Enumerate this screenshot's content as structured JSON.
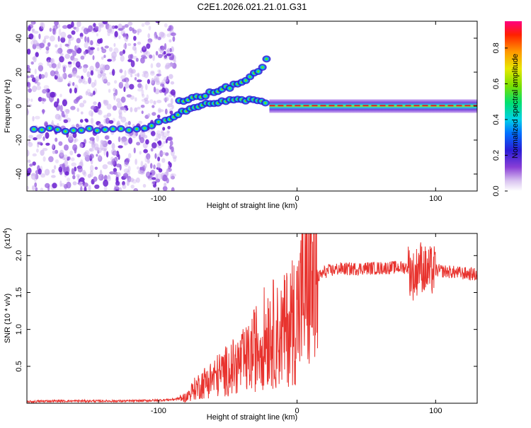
{
  "title": "C2E1.2026.021.21.01.G31",
  "colorbar": {
    "label": "Normalized spectral amplitude",
    "ticks": [
      "0.0",
      "0.2",
      "0.4",
      "0.6",
      "0.8"
    ],
    "tick_values": [
      0.0,
      0.2,
      0.4,
      0.6,
      0.8
    ],
    "range": [
      0,
      0.95
    ]
  },
  "chart_data": [
    {
      "type": "heatmap",
      "title": "C2E1.2026.021.21.01.G31",
      "xlabel": "Height of straight line (km)",
      "ylabel": "Frequency (Hz)",
      "xlim": [
        -195,
        130
      ],
      "ylim": [
        -50,
        50
      ],
      "xticks": [
        -100,
        0,
        100
      ],
      "xtick_labels": [
        "-100",
        "0",
        "100"
      ],
      "yticks": [
        40,
        20,
        0,
        -20,
        -40
      ],
      "ytick_labels": [
        "40",
        "20",
        "0",
        "-20",
        "-40"
      ],
      "features": [
        {
          "name": "diffuse-noise-region",
          "x_range": [
            -195,
            -88
          ],
          "y_range": [
            -50,
            50
          ]
        },
        {
          "name": "main-track-segment",
          "x": [
            -190,
            -150,
            -110,
            -95
          ],
          "y": [
            -14,
            -14,
            -14,
            -8
          ]
        },
        {
          "name": "transition-segment",
          "x": [
            -95,
            -80,
            -60,
            -40,
            -20
          ],
          "y": [
            -8,
            -2,
            2,
            4,
            2
          ]
        },
        {
          "name": "stable-ridge",
          "x": [
            -20,
            0,
            20,
            60,
            100,
            130
          ],
          "y": [
            0,
            0,
            0,
            0,
            0,
            0
          ]
        },
        {
          "name": "upper-branch",
          "x": [
            -85,
            -60,
            -40,
            -25,
            -19
          ],
          "y": [
            3,
            8,
            14,
            22,
            34
          ]
        }
      ]
    },
    {
      "type": "line",
      "xlabel": "Height of straight line (km)",
      "ylabel": "SNR (10 * v/v)",
      "exponent_label": "(x10",
      "exponent_power": "4",
      "xlim": [
        -195,
        130
      ],
      "ylim": [
        0,
        2.3
      ],
      "xticks": [
        -100,
        0,
        100
      ],
      "xtick_labels": [
        "-100",
        "0",
        "100"
      ],
      "yticks": [
        0.5,
        1.0,
        1.5,
        2.0
      ],
      "ytick_labels": [
        "0.5",
        "1.0",
        "1.5",
        "2.0"
      ],
      "series": [
        {
          "name": "SNR",
          "color": "#e8332e",
          "x": [
            -195,
            -180,
            -160,
            -140,
            -120,
            -100,
            -90,
            -80,
            -75,
            -70,
            -65,
            -60,
            -55,
            -50,
            -45,
            -40,
            -35,
            -30,
            -25,
            -20,
            -15,
            -10,
            -5,
            0,
            5,
            10,
            15,
            20,
            25,
            30,
            40,
            50,
            60,
            70,
            80,
            85,
            88,
            90,
            92,
            95,
            100,
            110,
            120,
            130
          ],
          "y": [
            0.02,
            0.03,
            0.03,
            0.03,
            0.03,
            0.04,
            0.05,
            0.08,
            0.18,
            0.25,
            0.3,
            0.35,
            0.4,
            0.45,
            0.5,
            0.55,
            0.6,
            0.75,
            0.85,
            1.0,
            0.9,
            0.95,
            1.1,
            1.2,
            1.5,
            1.65,
            1.7,
            1.78,
            1.8,
            1.82,
            1.82,
            1.83,
            1.83,
            1.84,
            1.84,
            1.7,
            1.9,
            1.85,
            1.8,
            1.78,
            1.8,
            1.78,
            1.76,
            1.74
          ]
        }
      ]
    }
  ]
}
